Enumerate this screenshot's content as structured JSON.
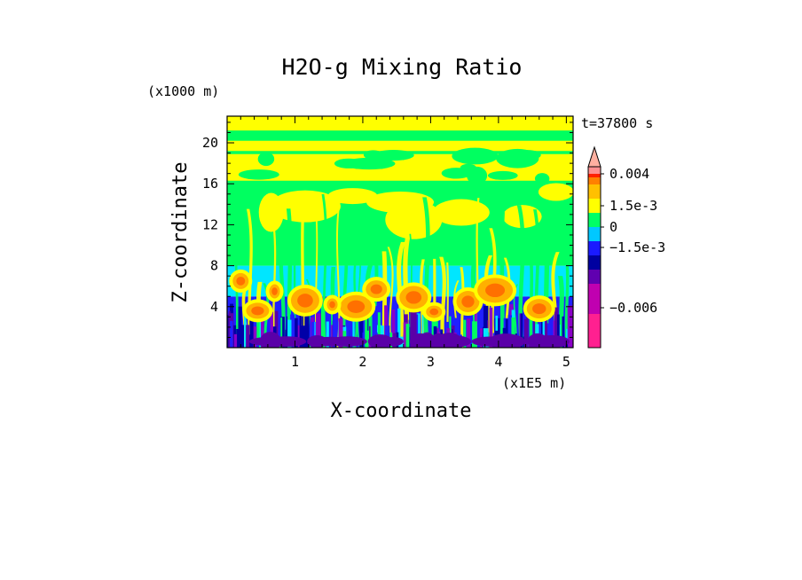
{
  "chart_data": {
    "type": "heatmap",
    "title": "H2O-g Mixing Ratio",
    "xlabel": "X-coordinate",
    "ylabel": "Z-coordinate",
    "x_unit": "(x1E5 m)",
    "y_unit": "(x1000 m)",
    "time_label": "t=37800 s",
    "x_ticks": [
      "1",
      "2",
      "3",
      "4",
      "5"
    ],
    "x_tick_values": [
      1,
      2,
      3,
      4,
      5
    ],
    "y_ticks": [
      "4",
      "8",
      "12",
      "16",
      "20"
    ],
    "y_tick_values": [
      4,
      8,
      12,
      16,
      20
    ],
    "xlim": [
      0,
      5.1
    ],
    "ylim": [
      0,
      22.6
    ],
    "colorbar": {
      "labels": [
        "0.004",
        "1.5e-3",
        "0",
        "−1.5e-3",
        "−0.006"
      ],
      "label_values": [
        0.004,
        0.0015,
        0,
        -0.0015,
        -0.006
      ],
      "extend": "max",
      "colors": [
        "#ff2090",
        "#c000b0",
        "#6000b0",
        "#0000a0",
        "#1a1aff",
        "#00c8ff",
        "#00ff66",
        "#ffff00",
        "#ffc000",
        "#ff8000",
        "#ff2000",
        "#ff9090"
      ]
    },
    "field_legend": {
      "deep_purple": "#5a00a8",
      "purple": "#8a00c8",
      "navy": "#0000a8",
      "blue": "#2020ff",
      "cyan": "#00e6ff",
      "green": "#00ff60",
      "yellow": "#ffff00",
      "orange": "#ffb000",
      "dark_orange": "#ff7000",
      "red": "#ff2000"
    },
    "background": {
      "zones": [
        {
          "z_range": [
            0,
            5
          ],
          "color": "#2020ff"
        },
        {
          "z_range": [
            5,
            8
          ],
          "color": "#00e6ff"
        },
        {
          "z_range": [
            8,
            22.6
          ],
          "color": "#00ff60"
        }
      ]
    }
  }
}
